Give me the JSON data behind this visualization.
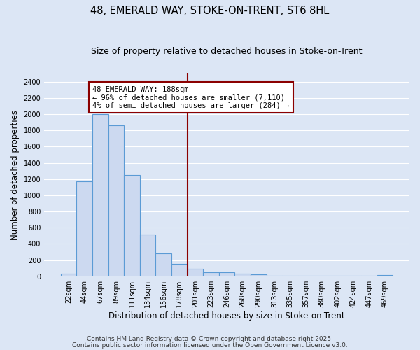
{
  "title1": "48, EMERALD WAY, STOKE-ON-TRENT, ST6 8HL",
  "title2": "Size of property relative to detached houses in Stoke-on-Trent",
  "xlabel": "Distribution of detached houses by size in Stoke-on-Trent",
  "ylabel": "Number of detached properties",
  "categories": [
    "22sqm",
    "44sqm",
    "67sqm",
    "89sqm",
    "111sqm",
    "134sqm",
    "156sqm",
    "178sqm",
    "201sqm",
    "223sqm",
    "246sqm",
    "268sqm",
    "290sqm",
    "313sqm",
    "335sqm",
    "357sqm",
    "380sqm",
    "402sqm",
    "424sqm",
    "447sqm",
    "469sqm"
  ],
  "values": [
    30,
    1170,
    2000,
    1860,
    1250,
    520,
    280,
    155,
    90,
    50,
    45,
    35,
    20,
    8,
    5,
    5,
    3,
    3,
    2,
    2,
    15
  ],
  "bar_color": "#ccd9f0",
  "bar_edge_color": "#5b9bd5",
  "vline_x": 8.0,
  "vline_color": "#8b0000",
  "annotation_text": "48 EMERALD WAY: 188sqm\n← 96% of detached houses are smaller (7,110)\n4% of semi-detached houses are larger (284) →",
  "annotation_box_color": "#ffffff",
  "annotation_box_edge": "#8b0000",
  "ylim": [
    0,
    2500
  ],
  "yticks": [
    0,
    200,
    400,
    600,
    800,
    1000,
    1200,
    1400,
    1600,
    1800,
    2000,
    2200,
    2400
  ],
  "bg_color": "#dce6f5",
  "grid_color": "#ffffff",
  "footer1": "Contains HM Land Registry data © Crown copyright and database right 2025.",
  "footer2": "Contains public sector information licensed under the Open Government Licence v3.0.",
  "title_fontsize": 10.5,
  "subtitle_fontsize": 9,
  "axis_label_fontsize": 8.5,
  "tick_fontsize": 7,
  "footer_fontsize": 6.5
}
